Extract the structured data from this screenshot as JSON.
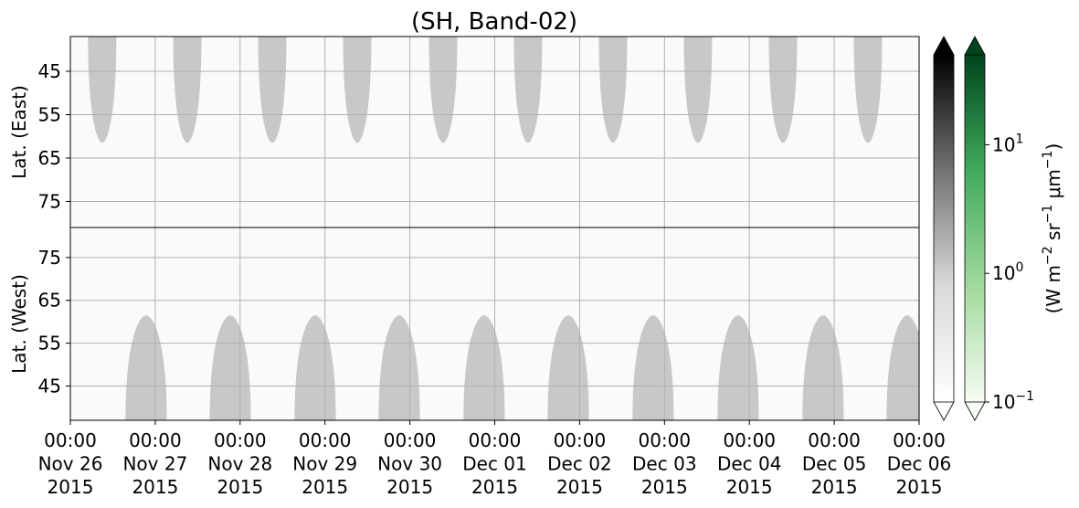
{
  "chart_data": {
    "type": "heatmap",
    "title": "(SH, Band-02)",
    "xlim": [
      "2015-11-26 00:00",
      "2015-12-06 00:00"
    ],
    "xticks": [
      {
        "value": "2015-11-26 00:00",
        "label": [
          "00:00",
          "Nov 26",
          "2015"
        ]
      },
      {
        "value": "2015-11-27 00:00",
        "label": [
          "00:00",
          "Nov 27",
          "2015"
        ]
      },
      {
        "value": "2015-11-28 00:00",
        "label": [
          "00:00",
          "Nov 28",
          "2015"
        ]
      },
      {
        "value": "2015-11-29 00:00",
        "label": [
          "00:00",
          "Nov 29",
          "2015"
        ]
      },
      {
        "value": "2015-11-30 00:00",
        "label": [
          "00:00",
          "Nov 30",
          "2015"
        ]
      },
      {
        "value": "2015-12-01 00:00",
        "label": [
          "00:00",
          "Dec 01",
          "2015"
        ]
      },
      {
        "value": "2015-12-02 00:00",
        "label": [
          "00:00",
          "Dec 02",
          "2015"
        ]
      },
      {
        "value": "2015-12-03 00:00",
        "label": [
          "00:00",
          "Dec 03",
          "2015"
        ]
      },
      {
        "value": "2015-12-04 00:00",
        "label": [
          "00:00",
          "Dec 04",
          "2015"
        ]
      },
      {
        "value": "2015-12-05 00:00",
        "label": [
          "00:00",
          "Dec 05",
          "2015"
        ]
      },
      {
        "value": "2015-12-06 00:00",
        "label": [
          "00:00",
          "Dec 06",
          "2015"
        ]
      }
    ],
    "grid": true,
    "lobe_color": "#c8c8c8",
    "panels": [
      {
        "ylabel": "Lat. (East)",
        "ylim": [
          37,
          81
        ],
        "inverted": true,
        "yticks": [
          45,
          55,
          65,
          75
        ],
        "lobes": [
          {
            "start": "2015-11-26 05:00",
            "end": "2015-11-26 13:00",
            "tip": 61.5
          },
          {
            "start": "2015-11-27 05:04",
            "end": "2015-11-27 13:04",
            "tip": 61.5
          },
          {
            "start": "2015-11-28 05:06",
            "end": "2015-11-28 13:06",
            "tip": 61.5
          },
          {
            "start": "2015-11-29 05:07",
            "end": "2015-11-29 13:07",
            "tip": 61.5
          },
          {
            "start": "2015-11-30 05:24",
            "end": "2015-11-30 13:24",
            "tip": 61.5
          },
          {
            "start": "2015-12-01 05:25",
            "end": "2015-12-01 13:25",
            "tip": 61.5
          },
          {
            "start": "2015-12-02 05:27",
            "end": "2015-12-02 13:27",
            "tip": 61.5
          },
          {
            "start": "2015-12-03 05:28",
            "end": "2015-12-03 13:28",
            "tip": 61.5
          },
          {
            "start": "2015-12-04 05:30",
            "end": "2015-12-04 13:30",
            "tip": 61.5
          },
          {
            "start": "2015-12-05 05:32",
            "end": "2015-12-05 13:32",
            "tip": 61.5
          }
        ]
      },
      {
        "ylabel": "Lat. (West)",
        "ylim": [
          37,
          82
        ],
        "inverted": false,
        "yticks": [
          45,
          55,
          65,
          75
        ],
        "lobes": [
          {
            "start": "2015-11-26 15:36",
            "end": "2015-11-27 03:16",
            "tip": 61.5
          },
          {
            "start": "2015-11-27 15:23",
            "end": "2015-11-28 03:03",
            "tip": 61.5
          },
          {
            "start": "2015-11-28 15:24",
            "end": "2015-11-29 03:04",
            "tip": 61.5
          },
          {
            "start": "2015-11-29 15:10",
            "end": "2015-11-30 02:50",
            "tip": 61.5
          },
          {
            "start": "2015-11-30 15:10",
            "end": "2015-12-01 02:50",
            "tip": 61.5
          },
          {
            "start": "2015-12-01 14:58",
            "end": "2015-12-02 02:38",
            "tip": 61.5
          },
          {
            "start": "2015-12-02 14:58",
            "end": "2015-12-03 02:38",
            "tip": 61.5
          },
          {
            "start": "2015-12-03 15:00",
            "end": "2015-12-04 02:40",
            "tip": 61.5
          },
          {
            "start": "2015-12-04 15:01",
            "end": "2015-12-05 02:41",
            "tip": 61.5
          },
          {
            "start": "2015-12-05 14:48",
            "end": "2015-12-06 02:28",
            "tip": 61.5
          }
        ]
      }
    ],
    "colorbar": {
      "label": [
        "(W m",
        "−2",
        " sr",
        "−1",
        " μm",
        "−1",
        ")"
      ],
      "lim": [
        0.1,
        50
      ],
      "log": true,
      "extend": "both",
      "ticks": [
        {
          "value": 0.1,
          "label": [
            "10",
            "−1"
          ]
        },
        {
          "value": 1,
          "label": [
            "10",
            "0"
          ]
        },
        {
          "value": 10,
          "label": [
            "10",
            "1"
          ]
        }
      ],
      "cmaps": [
        [
          "#ffffff",
          "#d9d9d9",
          "#737373",
          "#000000"
        ],
        [
          "#f7fcf5",
          "#a1d99b",
          "#41ab5d",
          "#00441b"
        ]
      ]
    }
  }
}
